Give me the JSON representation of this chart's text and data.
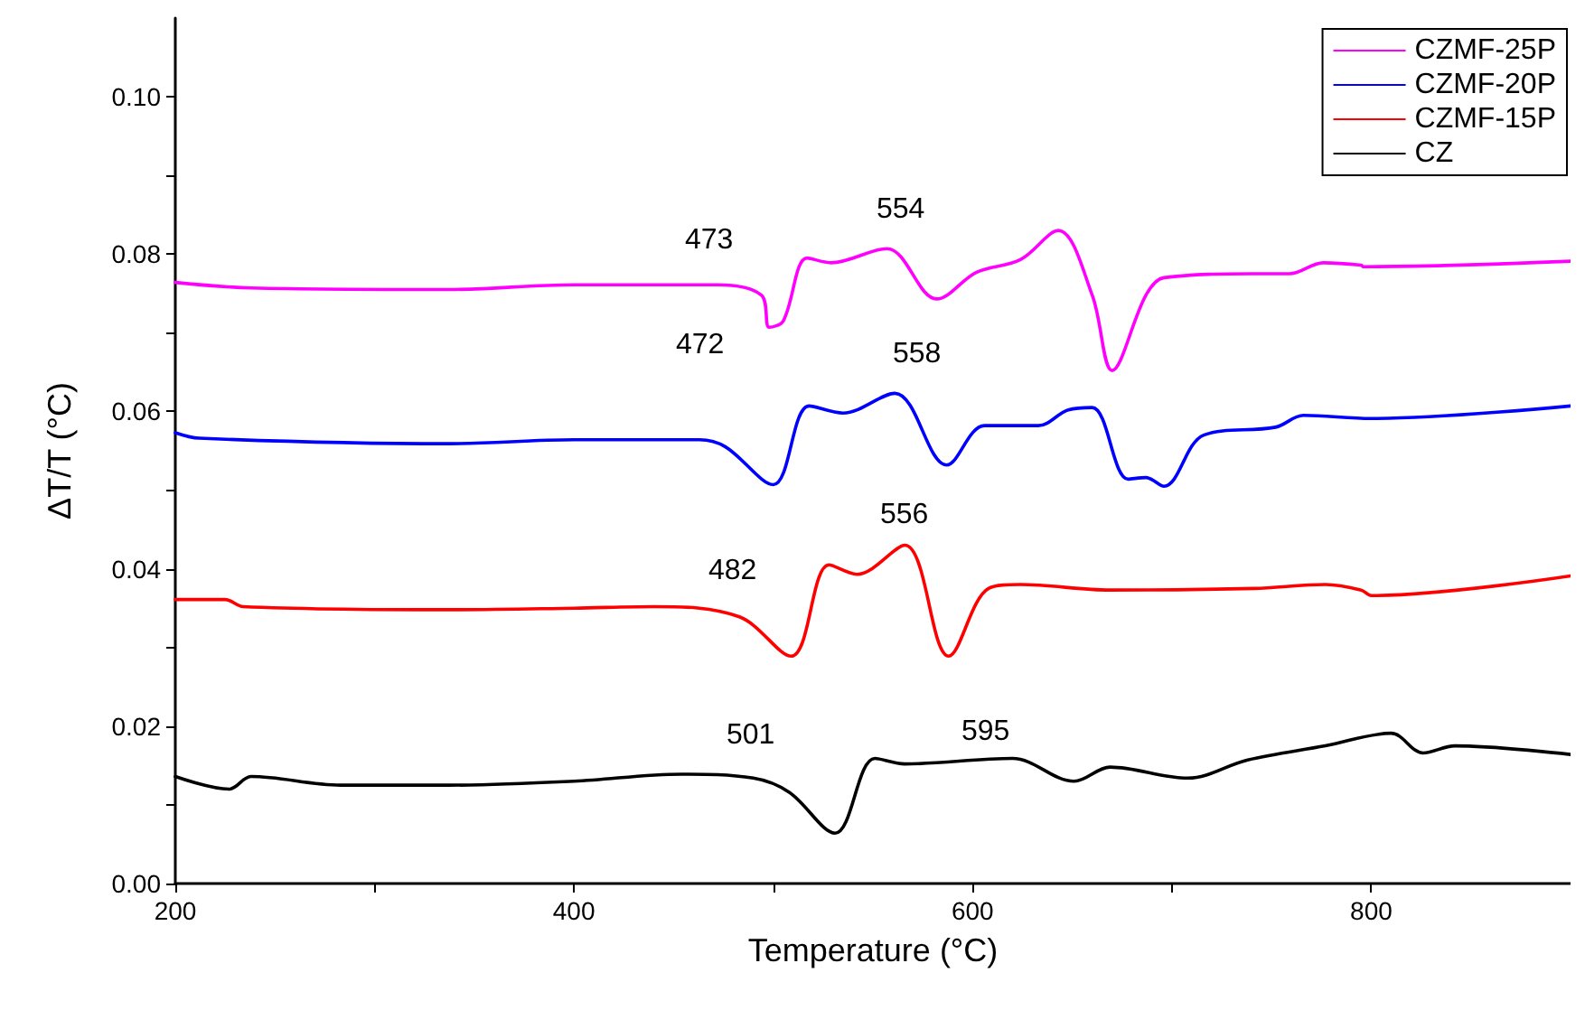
{
  "chart_data": {
    "type": "line",
    "xlabel": "Temperature (°C)",
    "ylabel": "ΔT/T (°C)",
    "xlim": [
      200,
      900
    ],
    "xticks": [
      200,
      {
        "value": 300,
        "label": null
      },
      400,
      {
        "value": 500,
        "label": null
      },
      600,
      {
        "value": 700,
        "label": null
      },
      800
    ],
    "ylim": [
      0,
      0.11
    ],
    "yticks": [
      {
        "value": 0,
        "label": "0.00"
      },
      {
        "value": 0.01,
        "label": null
      },
      0.02,
      {
        "value": 0.03,
        "label": null
      },
      0.04,
      {
        "value": 0.05,
        "label": null
      },
      0.06,
      {
        "value": 0.07,
        "label": null
      },
      0.08,
      {
        "value": 0.09,
        "label": null
      },
      {
        "value": 0.1,
        "label": "0.10"
      }
    ],
    "grid": false,
    "legend": "top right",
    "marker": "none",
    "line_style": "solid",
    "series": [
      {
        "name": "CZMF-25P",
        "color": "#ff00ff",
        "x": [
          200,
          238,
          337,
          400,
          472,
          494,
          498,
          505,
          517,
          529,
          557,
          582,
          602,
          624,
          643,
          660,
          670,
          687,
          696,
          741,
          759,
          776,
          795,
          796,
          900
        ],
        "values": [
          0.0764,
          0.0757,
          0.0755,
          0.0761,
          0.0761,
          0.0748,
          0.0707,
          0.0715,
          0.0795,
          0.0789,
          0.0807,
          0.0743,
          0.0777,
          0.0793,
          0.083,
          0.0748,
          0.0652,
          0.0748,
          0.077,
          0.0775,
          0.0775,
          0.0789,
          0.0786,
          0.0784,
          0.0791
        ]
      },
      {
        "name": "CZMF-20P",
        "color": "#0000ff",
        "x": [
          200,
          212,
          337,
          400,
          463,
          476,
          500,
          518,
          535,
          561,
          587,
          606,
          633,
          648,
          660,
          678,
          687,
          696,
          716,
          752,
          766,
          800,
          900
        ],
        "values": [
          0.0573,
          0.0566,
          0.0559,
          0.0564,
          0.0564,
          0.0555,
          0.0507,
          0.0607,
          0.0598,
          0.0623,
          0.0532,
          0.0582,
          0.0582,
          0.0602,
          0.0605,
          0.0514,
          0.0516,
          0.0505,
          0.057,
          0.058,
          0.0595,
          0.0591,
          0.0607
        ]
      },
      {
        "name": "CZMF-15P",
        "color": "#ff0000",
        "x": [
          200,
          225,
          234,
          337,
          400,
          440,
          483,
          509,
          528,
          542,
          566,
          588,
          608,
          624,
          669,
          741,
          777,
          795,
          800,
          900
        ],
        "values": [
          0.0361,
          0.0361,
          0.0352,
          0.0348,
          0.035,
          0.0352,
          0.0339,
          0.0289,
          0.0405,
          0.0393,
          0.043,
          0.0289,
          0.0375,
          0.038,
          0.0373,
          0.0375,
          0.038,
          0.0373,
          0.0366,
          0.0391
        ]
      },
      {
        "name": "CZ",
        "color": "#000000",
        "x": [
          200,
          227,
          238,
          283,
          337,
          400,
          454,
          490,
          508,
          531,
          551,
          566,
          620,
          651,
          669,
          708,
          738,
          777,
          810,
          826,
          842,
          900
        ],
        "values": [
          0.0136,
          0.012,
          0.0136,
          0.0125,
          0.0125,
          0.013,
          0.0139,
          0.0134,
          0.0116,
          0.0064,
          0.0159,
          0.0152,
          0.0159,
          0.013,
          0.0148,
          0.0134,
          0.0157,
          0.0175,
          0.0191,
          0.0166,
          0.0175,
          0.0164
        ]
      }
    ],
    "annotations": [
      "473",
      "554",
      "472",
      "558",
      "482",
      "556",
      "501",
      "595"
    ]
  }
}
